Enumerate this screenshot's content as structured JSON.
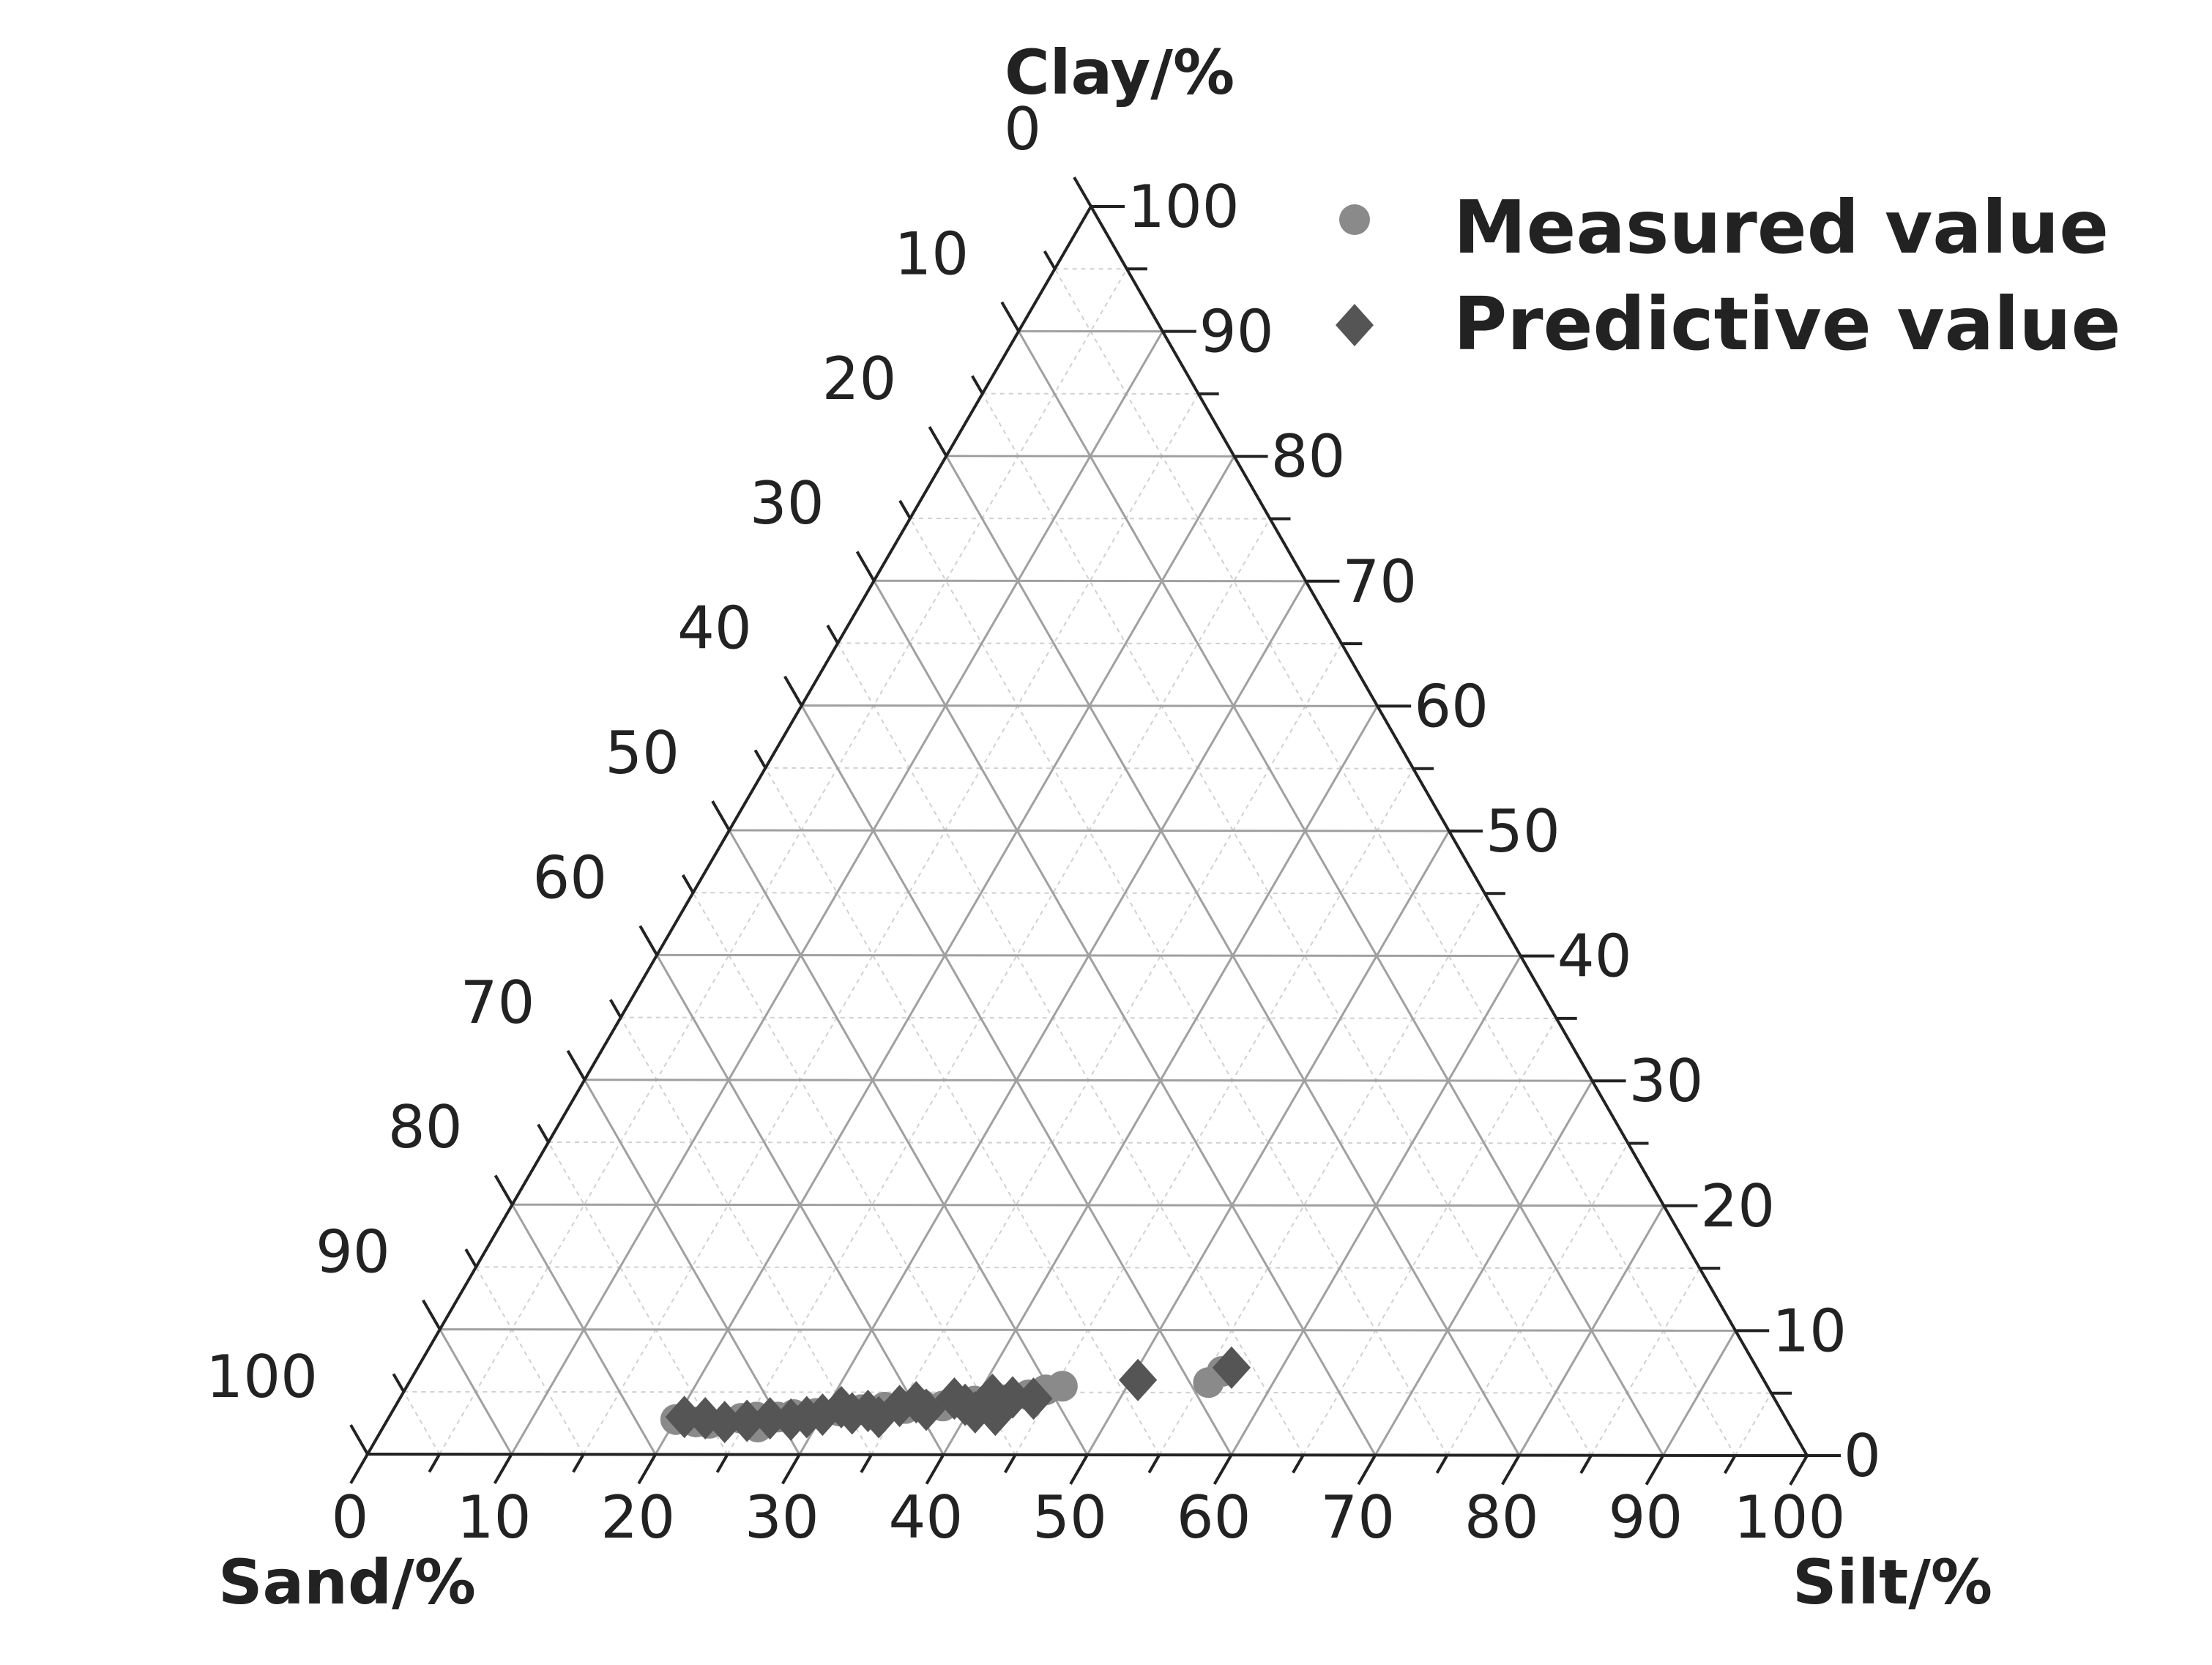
{
  "chart_data": {
    "type": "scatter",
    "subtype": "ternary",
    "axes": {
      "clay": {
        "title": "Clay/%",
        "range": [
          0,
          100
        ],
        "ticks_left_side": [
          "0",
          "10",
          "20",
          "30",
          "40",
          "50",
          "60",
          "70",
          "80",
          "90",
          "100"
        ],
        "ticks_right_side": [
          "100",
          "90",
          "80",
          "70",
          "60",
          "50",
          "40",
          "30",
          "20",
          "10",
          "0"
        ]
      },
      "sand": {
        "title": "Sand/%",
        "range": [
          0,
          100
        ]
      },
      "silt": {
        "title": "Silt/%",
        "range": [
          0,
          100
        ],
        "ticks_bottom": [
          "0",
          "10",
          "20",
          "30",
          "40",
          "50",
          "60",
          "70",
          "80",
          "90",
          "100"
        ]
      }
    },
    "grid": true,
    "legend": {
      "position": "top-right",
      "entries": [
        {
          "label": "Measured value",
          "marker": "circle",
          "color": "#8a8a8a"
        },
        {
          "label": "Predictive value",
          "marker": "diamond",
          "color": "#555555"
        }
      ]
    },
    "colors": {
      "measured": "#8a8a8a",
      "predictive": "#555555",
      "axis": "#222222",
      "major_grid": "#a0a0a0",
      "minor_grid": "#d0d0d0"
    },
    "series": [
      {
        "name": "Measured value",
        "marker": "circle",
        "points": [
          {
            "silt": 20.0,
            "clay": 2.8
          },
          {
            "silt": 21.5,
            "clay": 2.6
          },
          {
            "silt": 22.5,
            "clay": 2.5
          },
          {
            "silt": 24.5,
            "clay": 2.9
          },
          {
            "silt": 25.5,
            "clay": 3.0
          },
          {
            "silt": 26.0,
            "clay": 2.2
          },
          {
            "silt": 27.0,
            "clay": 3.0
          },
          {
            "silt": 28.0,
            "clay": 3.2
          },
          {
            "silt": 29.5,
            "clay": 3.3
          },
          {
            "silt": 31.0,
            "clay": 3.5
          },
          {
            "silt": 32.5,
            "clay": 3.6
          },
          {
            "silt": 34.0,
            "clay": 3.8
          },
          {
            "silt": 35.5,
            "clay": 3.7
          },
          {
            "silt": 36.5,
            "clay": 4.0
          },
          {
            "silt": 38.0,
            "clay": 3.9
          },
          {
            "silt": 39.0,
            "clay": 4.2
          },
          {
            "silt": 40.0,
            "clay": 4.3
          },
          {
            "silt": 41.0,
            "clay": 4.2
          },
          {
            "silt": 42.0,
            "clay": 4.4
          },
          {
            "silt": 43.5,
            "clay": 4.8
          },
          {
            "silt": 44.5,
            "clay": 5.2
          },
          {
            "silt": 45.5,
            "clay": 5.5
          },
          {
            "silt": 55.5,
            "clay": 5.8
          },
          {
            "silt": 56.0,
            "clay": 6.7
          }
        ]
      },
      {
        "name": "Predictive value",
        "marker": "diamond",
        "points": [
          {
            "silt": 20.5,
            "clay": 3.0
          },
          {
            "silt": 22.0,
            "clay": 2.9
          },
          {
            "silt": 23.5,
            "clay": 2.6
          },
          {
            "silt": 25.0,
            "clay": 2.7
          },
          {
            "silt": 26.5,
            "clay": 2.9
          },
          {
            "silt": 28.0,
            "clay": 2.8
          },
          {
            "silt": 29.0,
            "clay": 3.0
          },
          {
            "silt": 30.0,
            "clay": 3.2
          },
          {
            "silt": 31.0,
            "clay": 3.8
          },
          {
            "silt": 32.0,
            "clay": 3.3
          },
          {
            "silt": 33.0,
            "clay": 3.5
          },
          {
            "silt": 34.0,
            "clay": 3.0
          },
          {
            "silt": 35.0,
            "clay": 3.9
          },
          {
            "silt": 36.0,
            "clay": 4.2
          },
          {
            "silt": 37.0,
            "clay": 3.6
          },
          {
            "silt": 38.5,
            "clay": 4.5
          },
          {
            "silt": 39.5,
            "clay": 4.0
          },
          {
            "silt": 40.5,
            "clay": 3.4
          },
          {
            "silt": 41.0,
            "clay": 4.8
          },
          {
            "silt": 42.0,
            "clay": 3.2
          },
          {
            "silt": 42.5,
            "clay": 4.6
          },
          {
            "silt": 44.0,
            "clay": 4.5
          },
          {
            "silt": 50.5,
            "clay": 6.0
          },
          {
            "silt": 56.5,
            "clay": 7.0
          }
        ]
      }
    ]
  }
}
